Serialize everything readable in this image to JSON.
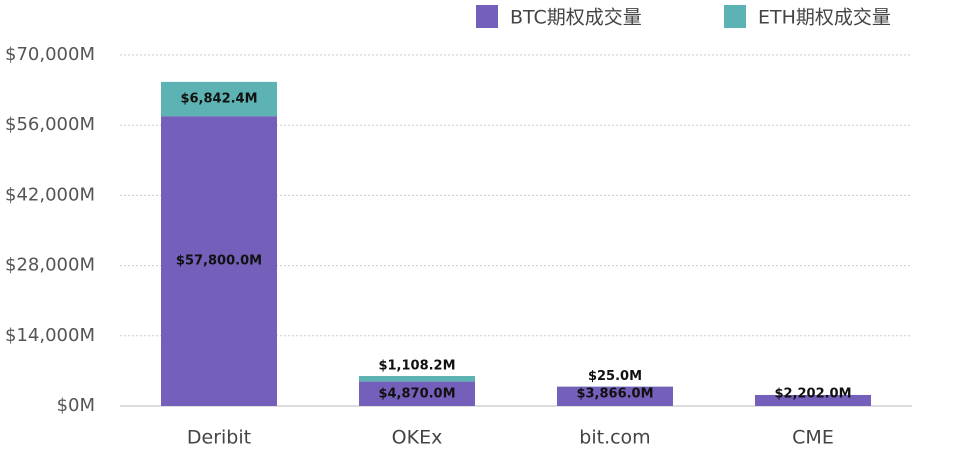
{
  "chart_data": {
    "type": "stacked-bar",
    "categories": [
      "Deribit",
      "OKEx",
      "bit.com",
      "CME"
    ],
    "series": [
      {
        "name": "BTC期权成交量",
        "color": "#7460bb",
        "values": [
          57800.0,
          4870.0,
          3866.0,
          2202.0
        ],
        "value_labels": [
          "$57,800.0M",
          "$4,870.0M",
          "$3,866.0M",
          "$2,202.0M"
        ]
      },
      {
        "name": "ETH期权成交量",
        "color": "#5db3b3",
        "values": [
          6842.4,
          1108.2,
          25.0,
          null
        ],
        "value_labels": [
          "$6,842.4M",
          "$1,108.2M",
          "$25.0M",
          null
        ]
      }
    ],
    "ylim": [
      0,
      70000
    ],
    "yticks": [
      {
        "value": 0,
        "label": "$0M"
      },
      {
        "value": 14000,
        "label": "$14,000M"
      },
      {
        "value": 28000,
        "label": "$28,000M"
      },
      {
        "value": 42000,
        "label": "$42,000M"
      },
      {
        "value": 56000,
        "label": "$56,000M"
      },
      {
        "value": 70000,
        "label": "$70,000M"
      }
    ],
    "grid": true,
    "legend": "top-right"
  }
}
